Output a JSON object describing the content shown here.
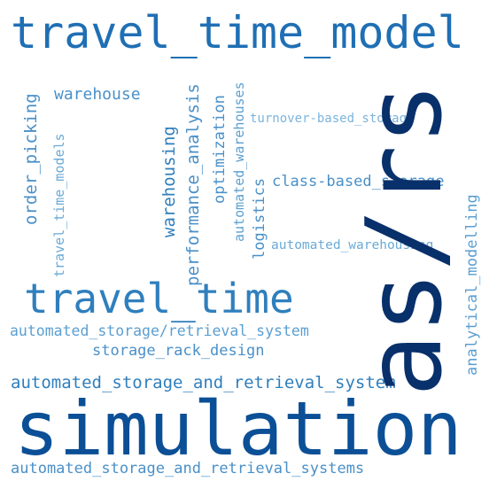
{
  "words": [
    {
      "text": "travel_time_model",
      "color": "#1f6fb4"
    },
    {
      "text": "as/rs",
      "color": "#08306b"
    },
    {
      "text": "simulation",
      "color": "#0b4f96"
    },
    {
      "text": "travel_time",
      "color": "#2f7fbd"
    },
    {
      "text": "warehouse",
      "color": "#4a90c8"
    },
    {
      "text": "order_picking",
      "color": "#4a90c8"
    },
    {
      "text": "travel_time_models",
      "color": "#6aaad6"
    },
    {
      "text": "warehousing",
      "color": "#2f7fbd"
    },
    {
      "text": "performance_analysis",
      "color": "#4a90c8"
    },
    {
      "text": "optimization",
      "color": "#4a90c8"
    },
    {
      "text": "automated_warehouses",
      "color": "#5b9fd1"
    },
    {
      "text": "turnover-based_storage",
      "color": "#7bb4dc"
    },
    {
      "text": "logistics",
      "color": "#4a90c8"
    },
    {
      "text": "class-based_storage",
      "color": "#4a90c8"
    },
    {
      "text": "automated_warehousing",
      "color": "#6aaad6"
    },
    {
      "text": "analytical_modelling",
      "color": "#5b9fd1"
    },
    {
      "text": "automated_storage/retrieval_system",
      "color": "#5b9fd1"
    },
    {
      "text": "storage_rack_design",
      "color": "#4a90c8"
    },
    {
      "text": "automated_storage_and_retrieval_system",
      "color": "#2f7fbd"
    },
    {
      "text": "automated_storage_and_retrieval_systems",
      "color": "#4a90c8"
    }
  ]
}
